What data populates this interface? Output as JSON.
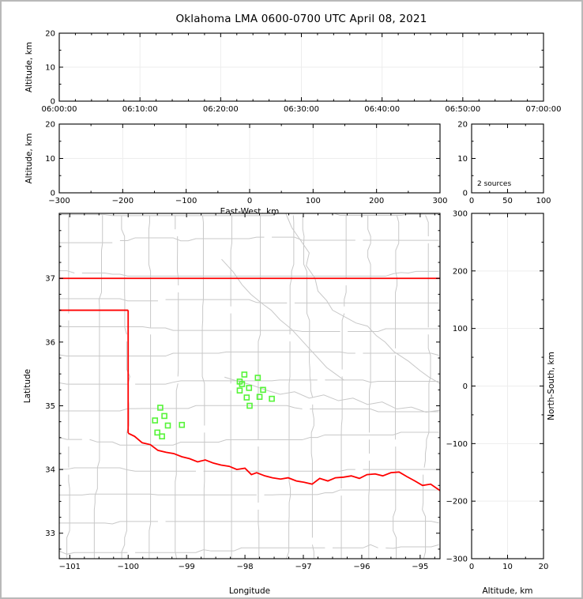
{
  "title": "Oklahoma LMA 0600-0700 UTC April 08, 2021",
  "colors": {
    "state_border_red": "#ff0000",
    "source_green": "#55f438",
    "county_gray": "#c8c8c8",
    "grid_gray": "#ededed",
    "axis_black": "#000000",
    "frame_gray": "#b9b9b9",
    "background": "#ffffff"
  },
  "annotations": {
    "source_count": "2 sources"
  },
  "chart_data": [
    {
      "id": "alt_vs_time",
      "type": "scatter",
      "xlabel": "",
      "ylabel": "Altitude, km",
      "xlim": [
        0,
        3600
      ],
      "ylim": [
        0,
        20
      ],
      "xticks": [
        0,
        600,
        1200,
        1800,
        2400,
        3000,
        3600
      ],
      "xtick_labels": [
        "06:00:00",
        "06:10:00",
        "06:20:00",
        "06:30:00",
        "06:40:00",
        "06:50:00",
        "07:00:00"
      ],
      "yticks": [
        0,
        10,
        20
      ],
      "ytick_labels": [
        "0",
        "10",
        "20"
      ],
      "xminor": 120,
      "yminor": 5,
      "grid": true,
      "points": []
    },
    {
      "id": "alt_vs_ew",
      "type": "scatter",
      "xlabel": "East-West, km",
      "ylabel": "Altitude, km",
      "xlim": [
        -300,
        300
      ],
      "ylim": [
        0,
        20
      ],
      "xticks": [
        -300,
        -200,
        -100,
        0,
        100,
        200,
        300
      ],
      "xtick_labels": [
        "−300",
        "−200",
        "−100",
        "0",
        "100",
        "200",
        "300"
      ],
      "yticks": [
        0,
        10,
        20
      ],
      "ytick_labels": [
        "0",
        "10",
        "20"
      ],
      "xminor": 50,
      "yminor": 5,
      "grid": true,
      "points": []
    },
    {
      "id": "alt_histogram",
      "type": "line",
      "xlabel": "",
      "ylabel": "",
      "xlim": [
        0,
        100
      ],
      "ylim": [
        0,
        20
      ],
      "xticks": [
        0,
        50,
        100
      ],
      "xtick_labels": [
        "0",
        "50",
        "100"
      ],
      "yticks": [
        0,
        10,
        20
      ],
      "ytick_labels": [
        "0",
        "10",
        "20"
      ],
      "xminor": 25,
      "yminor": 5,
      "grid": false,
      "annotation": "2 sources",
      "points": []
    },
    {
      "id": "plan_view",
      "type": "scatter",
      "xlabel": "Longitude",
      "ylabel": "Latitude",
      "xlim": [
        -101.18,
        -94.66
      ],
      "ylim": [
        32.6,
        38.02
      ],
      "xticks": [
        -101,
        -100,
        -99,
        -98,
        -97,
        -96,
        -95
      ],
      "xtick_labels": [
        "−101",
        "−100",
        "−99",
        "−98",
        "−97",
        "−96",
        "−95"
      ],
      "yticks": [
        33,
        34,
        35,
        36,
        37
      ],
      "ytick_labels": [
        "33",
        "34",
        "35",
        "36",
        "37"
      ],
      "xminor": 0.25,
      "yminor": 0.25,
      "grid": false,
      "series": [
        {
          "name": "lma_sources",
          "marker": "open-square",
          "color": "#55f438",
          "points": [
            [
              -98.01,
              35.49
            ],
            [
              -97.78,
              35.44
            ],
            [
              -98.09,
              35.38
            ],
            [
              -98.05,
              35.34
            ],
            [
              -97.93,
              35.28
            ],
            [
              -98.09,
              35.24
            ],
            [
              -97.69,
              35.25
            ],
            [
              -97.75,
              35.14
            ],
            [
              -97.97,
              35.13
            ],
            [
              -97.54,
              35.11
            ],
            [
              -97.92,
              35.0
            ],
            [
              -99.45,
              34.97
            ],
            [
              -99.38,
              34.84
            ],
            [
              -99.54,
              34.77
            ],
            [
              -99.32,
              34.69
            ],
            [
              -99.08,
              34.7
            ],
            [
              -99.5,
              34.58
            ],
            [
              -99.42,
              34.52
            ]
          ]
        }
      ],
      "state_border": {
        "north": [
          [
            -101.18,
            37.0
          ],
          [
            -94.66,
            37.0
          ]
        ],
        "panhandle_south": [
          [
            -101.18,
            36.5
          ],
          [
            -100.0,
            36.5
          ]
        ],
        "west": [
          [
            -100.0,
            36.5
          ],
          [
            -100.0,
            34.57
          ]
        ],
        "red_river": [
          [
            -100.0,
            34.57
          ],
          [
            -99.89,
            34.52
          ],
          [
            -99.76,
            34.42
          ],
          [
            -99.62,
            34.39
          ],
          [
            -99.49,
            34.3
          ],
          [
            -99.35,
            34.27
          ],
          [
            -99.22,
            34.25
          ],
          [
            -99.08,
            34.2
          ],
          [
            -98.95,
            34.17
          ],
          [
            -98.81,
            34.12
          ],
          [
            -98.68,
            34.15
          ],
          [
            -98.54,
            34.1
          ],
          [
            -98.41,
            34.07
          ],
          [
            -98.27,
            34.05
          ],
          [
            -98.14,
            34.0
          ],
          [
            -98.0,
            34.02
          ],
          [
            -97.89,
            33.92
          ],
          [
            -97.8,
            33.95
          ],
          [
            -97.66,
            33.9
          ],
          [
            -97.53,
            33.87
          ],
          [
            -97.39,
            33.85
          ],
          [
            -97.26,
            33.87
          ],
          [
            -97.12,
            33.82
          ],
          [
            -96.99,
            33.8
          ],
          [
            -96.85,
            33.77
          ],
          [
            -96.72,
            33.86
          ],
          [
            -96.58,
            33.82
          ],
          [
            -96.45,
            33.87
          ],
          [
            -96.31,
            33.88
          ],
          [
            -96.18,
            33.9
          ],
          [
            -96.04,
            33.86
          ],
          [
            -95.91,
            33.92
          ],
          [
            -95.77,
            33.93
          ],
          [
            -95.64,
            33.9
          ],
          [
            -95.5,
            33.95
          ],
          [
            -95.36,
            33.96
          ],
          [
            -95.23,
            33.89
          ],
          [
            -95.09,
            33.82
          ],
          [
            -94.96,
            33.75
          ],
          [
            -94.82,
            33.77
          ],
          [
            -94.74,
            33.72
          ],
          [
            -94.66,
            33.67
          ]
        ]
      },
      "rivers": [
        [
          [
            -97.3,
            38.02
          ],
          [
            -97.2,
            37.8
          ],
          [
            -97.05,
            37.6
          ],
          [
            -96.9,
            37.4
          ],
          [
            -96.95,
            37.2
          ],
          [
            -96.8,
            37.0
          ],
          [
            -96.75,
            36.8
          ],
          [
            -96.6,
            36.65
          ],
          [
            -96.5,
            36.5
          ],
          [
            -96.3,
            36.4
          ],
          [
            -96.1,
            36.3
          ],
          [
            -95.9,
            36.25
          ],
          [
            -95.75,
            36.1
          ],
          [
            -95.6,
            36.0
          ],
          [
            -95.45,
            35.85
          ],
          [
            -95.2,
            35.7
          ],
          [
            -95.0,
            35.55
          ],
          [
            -94.85,
            35.45
          ],
          [
            -94.66,
            35.35
          ]
        ],
        [
          [
            -98.4,
            37.3
          ],
          [
            -98.2,
            37.1
          ],
          [
            -98.05,
            36.9
          ],
          [
            -97.9,
            36.75
          ],
          [
            -97.7,
            36.6
          ],
          [
            -97.55,
            36.5
          ],
          [
            -97.4,
            36.35
          ],
          [
            -97.2,
            36.2
          ],
          [
            -97.05,
            36.05
          ],
          [
            -96.9,
            35.9
          ],
          [
            -96.75,
            35.75
          ],
          [
            -96.6,
            35.6
          ],
          [
            -96.45,
            35.5
          ],
          [
            -96.3,
            35.4
          ]
        ],
        [
          [
            -98.35,
            35.45
          ],
          [
            -98.1,
            35.38
          ],
          [
            -97.9,
            35.33
          ],
          [
            -97.65,
            35.25
          ],
          [
            -97.4,
            35.18
          ],
          [
            -97.15,
            35.22
          ],
          [
            -96.9,
            35.12
          ],
          [
            -96.65,
            35.17
          ],
          [
            -96.4,
            35.08
          ],
          [
            -96.15,
            35.12
          ],
          [
            -95.9,
            35.02
          ],
          [
            -95.65,
            35.06
          ],
          [
            -95.4,
            34.95
          ],
          [
            -95.15,
            34.98
          ],
          [
            -94.9,
            34.9
          ],
          [
            -94.66,
            34.93
          ]
        ]
      ],
      "county_grid": {
        "lon_start": -101.05,
        "lon_step": 0.47,
        "lat_start": 32.72,
        "lat_step": 0.44,
        "seed": 13
      }
    },
    {
      "id": "ns_vs_alt",
      "type": "scatter",
      "xlabel": "Altitude, km",
      "ylabel": "North-South, km",
      "ylabel_side": "right",
      "xlim": [
        0,
        20
      ],
      "ylim": [
        -300,
        300
      ],
      "xticks": [
        0,
        10,
        20
      ],
      "xtick_labels": [
        "0",
        "10",
        "20"
      ],
      "yticks": [
        -300,
        -200,
        -100,
        0,
        100,
        200,
        300
      ],
      "ytick_labels": [
        "−300",
        "−200",
        "−100",
        "0",
        "100",
        "200",
        "300"
      ],
      "xminor": 5,
      "yminor": 50,
      "grid": true,
      "points": []
    }
  ]
}
